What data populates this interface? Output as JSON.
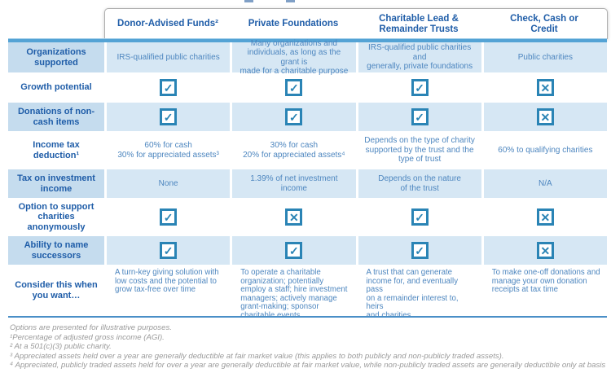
{
  "colors": {
    "accent_dark_blue": "#1f5da8",
    "cell_text_blue": "#4d86bf",
    "row_label_bg": "#c5dcee",
    "row_cell_bg": "#d6e7f4",
    "strip_blue": "#54a3d5",
    "icon_blue": "#2a84b5",
    "footnote_gray": "#9a9a9a"
  },
  "header": {
    "columns": [
      "Donor-Advised Funds²",
      "Private Foundations",
      "Charitable Lead &\nRemainder Trusts",
      "Check, Cash or\nCredit"
    ]
  },
  "table": {
    "rows": [
      {
        "label": "Organizations\nsupported",
        "cells": [
          {
            "text": "IRS-qualified public charities"
          },
          {
            "text": "Many organizations and\nindividuals, as long as the grant is\nmade for a charitable purpose"
          },
          {
            "text": "IRS-qualified public charities and\ngenerally, private foundations"
          },
          {
            "text": "Public charities"
          }
        ]
      },
      {
        "label": "Growth potential",
        "cells": [
          {
            "icon": "check"
          },
          {
            "icon": "check"
          },
          {
            "icon": "check"
          },
          {
            "icon": "x"
          }
        ]
      },
      {
        "label": "Donations of non-\ncash items",
        "cells": [
          {
            "icon": "check"
          },
          {
            "icon": "check"
          },
          {
            "icon": "check"
          },
          {
            "icon": "x"
          }
        ]
      },
      {
        "label": "Income tax\ndeduction¹",
        "cells": [
          {
            "text": "60% for cash\n30% for appreciated assets³"
          },
          {
            "text": "30% for cash\n20% for appreciated assets⁴"
          },
          {
            "text": "Depends on the type of charity\nsupported by the trust and the\ntype of trust"
          },
          {
            "text": "60% to qualifying charities"
          }
        ]
      },
      {
        "label": "Tax on investment\nincome",
        "cells": [
          {
            "text": "None"
          },
          {
            "text": "1.39% of net investment income"
          },
          {
            "text": "Depends on the nature\nof the trust"
          },
          {
            "text": "N/A"
          }
        ]
      },
      {
        "label": "Option to support\ncharities\nanonymously",
        "cells": [
          {
            "icon": "check"
          },
          {
            "icon": "x"
          },
          {
            "icon": "check"
          },
          {
            "icon": "x"
          }
        ]
      },
      {
        "label": "Ability to name\nsuccessors",
        "cells": [
          {
            "icon": "check"
          },
          {
            "icon": "check"
          },
          {
            "icon": "check"
          },
          {
            "icon": "x"
          }
        ]
      },
      {
        "label": "Consider this when\nyou want…",
        "cells": [
          {
            "text": "A turn-key giving solution with\nlow costs and the potential to\ngrow tax-free over time"
          },
          {
            "text": "To operate a charitable\norganization; potentially\nemploy a staff; hire investment\nmanagers; actively manage\ngrant-making; sponsor\ncharitable events"
          },
          {
            "text": "A trust that can generate\nincome for, and eventually pass\non a remainder interest to, heirs\nand charities"
          },
          {
            "text": "To make one-off donations and\nmanage your own donation\nreceipts at tax time"
          }
        ]
      }
    ]
  },
  "footnotes": [
    "Options are presented for illustrative purposes.",
    "¹Percentage of adjusted gross income (AGI).",
    "² At a 501(c)(3) public charity.",
    "³ Appreciated assets held over a year are generally deductible at fair market value (this applies to both publicly and non-publicly traded assets).",
    "⁴ Appreciated, publicly traded assets held for over a year are generally deductible at fair market value, while non-publicly traded assets are generally deductible only at basis"
  ]
}
